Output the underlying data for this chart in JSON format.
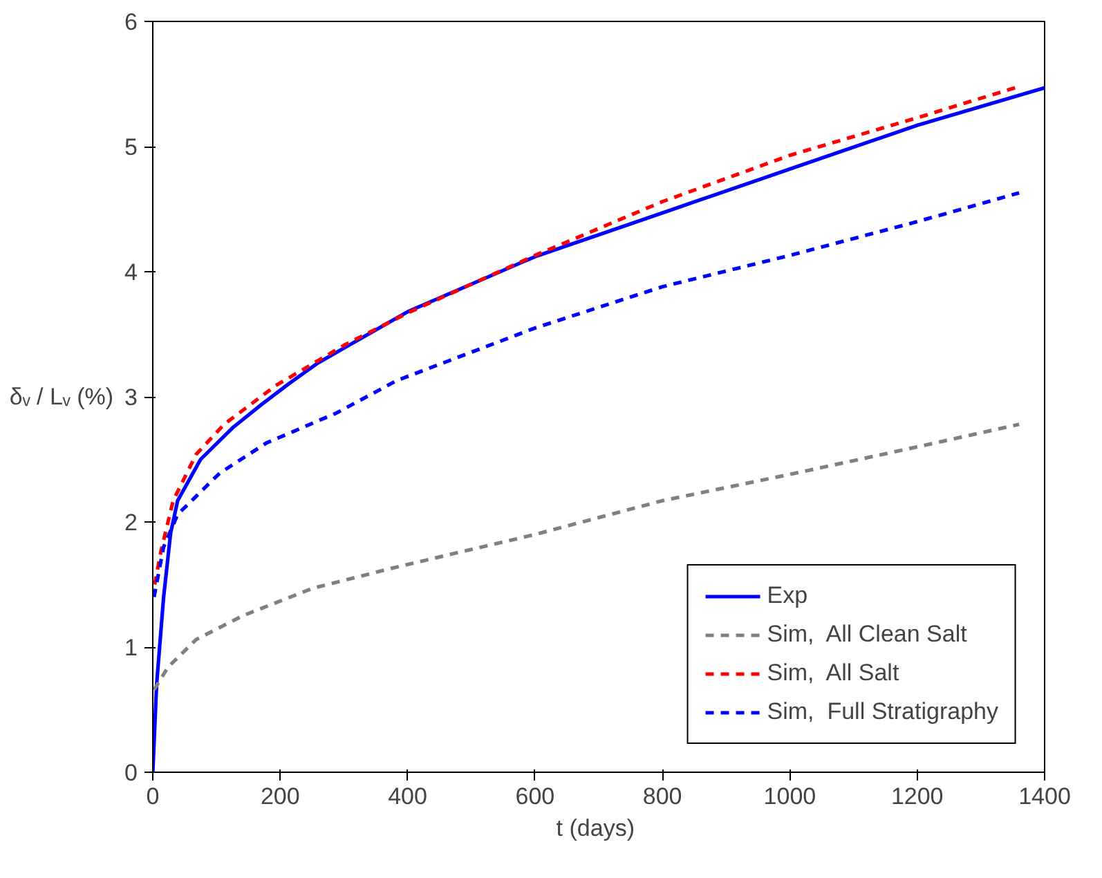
{
  "chart_data": {
    "type": "line",
    "xlabel": "t  (days)",
    "ylabel": "δᵥ / Lᵥ (%)",
    "xlim": [
      0,
      1400
    ],
    "ylim": [
      0,
      6
    ],
    "xticks": [
      0,
      200,
      400,
      600,
      800,
      1000,
      1200,
      1400
    ],
    "yticks": [
      0,
      1,
      2,
      3,
      4,
      5,
      6
    ],
    "grid": false,
    "legend": "bottom right",
    "series": [
      {
        "name": "Exp",
        "color": "#0000ff",
        "line_style": "solid",
        "x": [
          0,
          6,
          17,
          28,
          39,
          75,
          127,
          171,
          215,
          259,
          400,
          600,
          800,
          1000,
          1200,
          1400
        ],
        "values": [
          0,
          0.7,
          1.4,
          1.91,
          2.17,
          2.5,
          2.76,
          2.94,
          3.11,
          3.27,
          3.68,
          4.12,
          4.47,
          4.82,
          5.17,
          5.47
        ]
      },
      {
        "name": "Sim,  All Clean Salt",
        "color": "#808080",
        "line_style": "dashed",
        "x": [
          2,
          24,
          68,
          141,
          251,
          383,
          600,
          800,
          1000,
          1200,
          1360
        ],
        "values": [
          0.66,
          0.84,
          1.06,
          1.25,
          1.47,
          1.64,
          1.9,
          2.17,
          2.38,
          2.6,
          2.78
        ]
      },
      {
        "name": "Sim,  All Salt",
        "color": "#ff0000",
        "line_style": "dashed",
        "x": [
          3,
          13,
          32,
          68,
          112,
          193,
          303,
          400,
          600,
          800,
          1000,
          1200,
          1360
        ],
        "values": [
          1.5,
          1.77,
          2.17,
          2.54,
          2.78,
          3.09,
          3.42,
          3.67,
          4.13,
          4.56,
          4.93,
          5.23,
          5.48
        ]
      },
      {
        "name": "Sim,  Full Stratigraphy",
        "color": "#0000ff",
        "line_style": "dashed",
        "x": [
          2,
          17,
          39,
          105,
          178,
          288,
          383,
          600,
          800,
          1000,
          1200,
          1360
        ],
        "values": [
          1.4,
          1.8,
          2.06,
          2.39,
          2.63,
          2.87,
          3.13,
          3.55,
          3.88,
          4.13,
          4.4,
          4.63
        ]
      }
    ]
  }
}
